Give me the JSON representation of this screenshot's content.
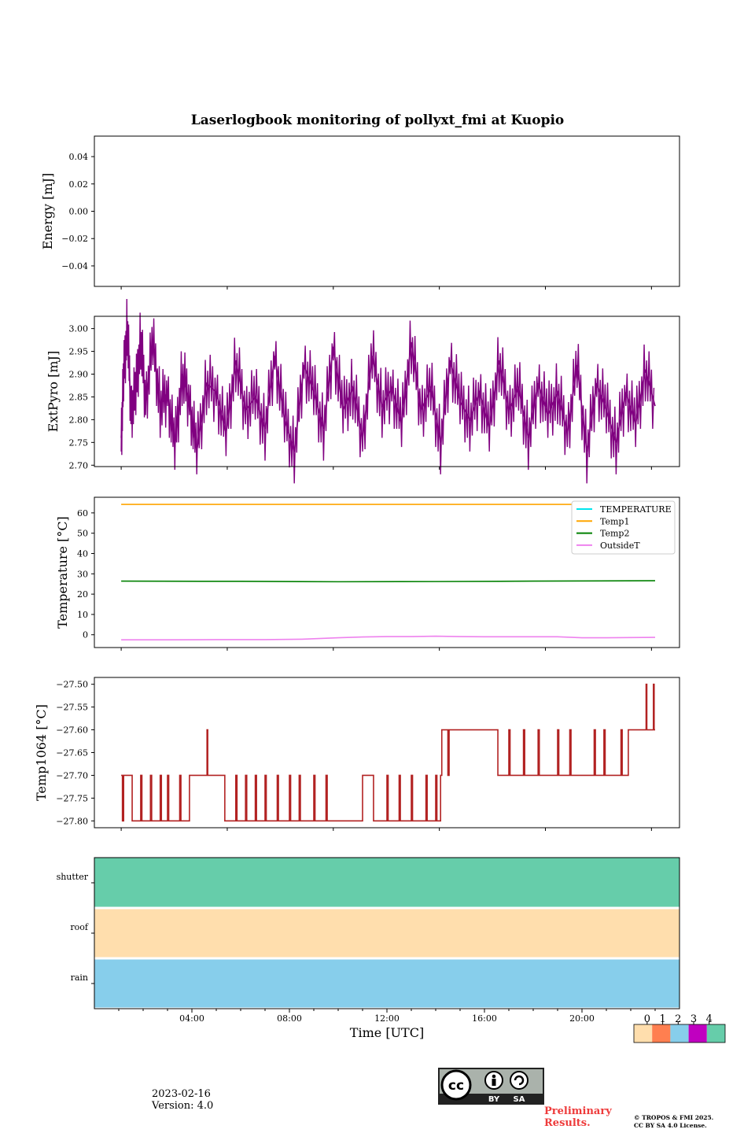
{
  "figure": {
    "title": "Laserlogbook monitoring of pollyxt_fmi at Kuopio",
    "date": "2023-02-16",
    "version": "Version: 4.0",
    "preliminary_line1": "Preliminary",
    "preliminary_line2": "Results.",
    "copyright_line1": "© TROPOS & FMI 2025.",
    "copyright_line2": "CC BY SA 4.0 License.",
    "license_badge": {
      "cc": "cc",
      "by": "BY",
      "sa": "SA"
    }
  },
  "chart_data": [
    {
      "id": "energy",
      "type": "line",
      "ylabel": "Energy [mJ]",
      "ylim": [
        -0.055,
        0.055
      ],
      "yticks": [
        0.04,
        0.02,
        0.0,
        -0.02,
        -0.04
      ],
      "ytick_labels": [
        "0.04",
        "0.02",
        "0.00",
        "−0.02",
        "−0.04"
      ],
      "series": []
    },
    {
      "id": "extpyro",
      "type": "line",
      "ylabel": "ExtPyro [mJ]",
      "ylim": [
        2.697,
        3.027
      ],
      "yticks": [
        3.0,
        2.95,
        2.9,
        2.85,
        2.8,
        2.75,
        2.7
      ],
      "ytick_labels": [
        "3.00",
        "2.95",
        "2.90",
        "2.85",
        "2.80",
        "2.75",
        "2.70"
      ],
      "series": [
        {
          "name": "ExtPyro",
          "color": "#800080",
          "x_hours": [
            1.1,
            1.2,
            1.35,
            1.5,
            1.7,
            1.9,
            2.1,
            2.4,
            2.7,
            3.0,
            3.3,
            3.6,
            3.9,
            4.2,
            4.6,
            5.0,
            5.4,
            5.8,
            6.2,
            6.6,
            7.0,
            7.4,
            7.8,
            8.2,
            8.6,
            9.0,
            9.4,
            9.8,
            10.2,
            10.6,
            11.0,
            11.4,
            11.8,
            12.2,
            12.6,
            13.0,
            13.4,
            13.8,
            14.2,
            14.6,
            15.0,
            15.4,
            15.8,
            16.2,
            16.6,
            17.0,
            17.4,
            17.8,
            18.2,
            18.6,
            19.0,
            19.4,
            19.8,
            20.2,
            20.6,
            21.0,
            21.4,
            21.8,
            22.2,
            22.6,
            23.0
          ],
          "values": [
            2.76,
            2.89,
            3.01,
            2.82,
            2.86,
            2.98,
            2.84,
            2.97,
            2.83,
            2.86,
            2.74,
            2.9,
            2.84,
            2.73,
            2.88,
            2.86,
            2.77,
            2.93,
            2.82,
            2.85,
            2.78,
            2.94,
            2.8,
            2.73,
            2.92,
            2.86,
            2.78,
            2.96,
            2.82,
            2.87,
            2.76,
            2.94,
            2.83,
            2.87,
            2.79,
            2.97,
            2.82,
            2.87,
            2.75,
            2.93,
            2.84,
            2.8,
            2.86,
            2.78,
            2.93,
            2.82,
            2.87,
            2.76,
            2.88,
            2.81,
            2.86,
            2.77,
            2.92,
            2.73,
            2.88,
            2.82,
            2.75,
            2.86,
            2.79,
            2.91,
            2.83
          ]
        }
      ]
    },
    {
      "id": "temperature",
      "type": "line",
      "ylabel": "Temperature [°C]",
      "ylim": [
        -6.3,
        67.7
      ],
      "yticks": [
        60,
        50,
        40,
        30,
        20,
        10,
        0
      ],
      "ytick_labels": [
        "60",
        "50",
        "40",
        "30",
        "20",
        "10",
        "0"
      ],
      "legend": "top-right",
      "series": [
        {
          "name": "TEMPERATURE",
          "color": "#00e5ee",
          "x_hours": [],
          "values": []
        },
        {
          "name": "Temp1",
          "color": "#ffa500",
          "x_hours": [
            1.1,
            23.0
          ],
          "values": [
            64.2,
            64.2
          ]
        },
        {
          "name": "Temp2",
          "color": "#008000",
          "x_hours": [
            1.1,
            6.0,
            10.0,
            14.0,
            18.0,
            23.0
          ],
          "values": [
            26.4,
            26.3,
            26.1,
            26.2,
            26.4,
            26.6
          ]
        },
        {
          "name": "OutsideT",
          "color": "#ee82ee",
          "x_hours": [
            1.1,
            3.0,
            5.0,
            7.0,
            8.5,
            10.0,
            11.0,
            12.0,
            13.0,
            14.0,
            15.0,
            16.0,
            17.0,
            18.0,
            19.0,
            20.0,
            21.0,
            22.0,
            23.0
          ],
          "values": [
            -2.5,
            -2.5,
            -2.4,
            -2.4,
            -2.2,
            -1.5,
            -1.1,
            -0.9,
            -0.9,
            -0.7,
            -0.9,
            -1.0,
            -1.0,
            -1.0,
            -1.0,
            -1.5,
            -1.5,
            -1.4,
            -1.3
          ]
        }
      ]
    },
    {
      "id": "temp1064",
      "type": "line",
      "ylabel": "Temp1064 [°C]",
      "ylim": [
        -27.815,
        -27.485
      ],
      "yticks": [
        -27.5,
        -27.55,
        -27.6,
        -27.65,
        -27.7,
        -27.75,
        -27.8
      ],
      "ytick_labels": [
        "−27.50",
        "−27.55",
        "−27.60",
        "−27.65",
        "−27.70",
        "−27.75",
        "−27.80"
      ],
      "series": [
        {
          "name": "Temp1064",
          "color": "#b22222",
          "x_hours": [
            1.1,
            1.15,
            1.2,
            1.5,
            1.55,
            1.9,
            1.95,
            2.3,
            2.35,
            2.7,
            2.75,
            3.0,
            3.05,
            3.5,
            3.55,
            3.9,
            3.95,
            4.6,
            4.62,
            4.65,
            4.7,
            5.3,
            5.35,
            5.8,
            5.85,
            6.2,
            6.25,
            6.6,
            6.65,
            7.0,
            7.05,
            7.5,
            7.55,
            8.0,
            8.05,
            8.4,
            8.45,
            9.0,
            9.05,
            9.5,
            9.55,
            10.0,
            10.05,
            10.9,
            11.0,
            11.4,
            11.45,
            12.0,
            12.05,
            12.5,
            12.55,
            13.0,
            13.05,
            13.6,
            13.65,
            14.0,
            14.05,
            14.2,
            14.25,
            14.5,
            14.55,
            15.2,
            15.25,
            16.5,
            16.55,
            17.0,
            17.05,
            17.6,
            17.65,
            18.2,
            18.25,
            19.0,
            19.05,
            19.5,
            19.55,
            20.5,
            20.55,
            20.9,
            20.95,
            21.6,
            21.65,
            21.9,
            21.95,
            22.6,
            22.63,
            22.66,
            22.7,
            22.9,
            22.93,
            22.96,
            23.0
          ],
          "values": [
            -27.7,
            -27.8,
            -27.7,
            -27.7,
            -27.8,
            -27.7,
            -27.8,
            -27.7,
            -27.8,
            -27.7,
            -27.8,
            -27.7,
            -27.8,
            -27.7,
            -27.8,
            -27.7,
            -27.7,
            -27.7,
            -27.6,
            -27.7,
            -27.7,
            -27.7,
            -27.8,
            -27.7,
            -27.8,
            -27.7,
            -27.8,
            -27.7,
            -27.8,
            -27.7,
            -27.8,
            -27.7,
            -27.8,
            -27.7,
            -27.8,
            -27.7,
            -27.8,
            -27.7,
            -27.8,
            -27.7,
            -27.8,
            -27.8,
            -27.8,
            -27.8,
            -27.7,
            -27.7,
            -27.8,
            -27.7,
            -27.8,
            -27.7,
            -27.8,
            -27.7,
            -27.8,
            -27.7,
            -27.8,
            -27.7,
            -27.8,
            -27.7,
            -27.6,
            -27.7,
            -27.6,
            -27.6,
            -27.6,
            -27.6,
            -27.7,
            -27.6,
            -27.7,
            -27.6,
            -27.7,
            -27.6,
            -27.7,
            -27.6,
            -27.7,
            -27.6,
            -27.7,
            -27.6,
            -27.7,
            -27.6,
            -27.7,
            -27.6,
            -27.7,
            -27.6,
            -27.6,
            -27.6,
            -27.5,
            -27.6,
            -27.6,
            -27.6,
            -27.5,
            -27.6,
            -27.6
          ]
        }
      ]
    },
    {
      "id": "status",
      "type": "heatmap",
      "rows": [
        "shutter",
        "roof",
        "rain"
      ],
      "row_values": [
        4,
        0,
        2
      ],
      "x_range_hours": [
        0,
        24
      ],
      "xticks_hours": [
        4,
        8,
        12,
        16,
        20
      ],
      "xtick_labels": [
        "04:00",
        "08:00",
        "12:00",
        "16:00",
        "20:00"
      ],
      "xlabel": "Time [UTC]",
      "colorbar": {
        "labels": [
          "0",
          "1",
          "2",
          "3",
          "4"
        ],
        "colors": [
          "#ffdead",
          "#ff7f50",
          "#87ceeb",
          "#c000c0",
          "#66cdaa"
        ]
      }
    }
  ]
}
